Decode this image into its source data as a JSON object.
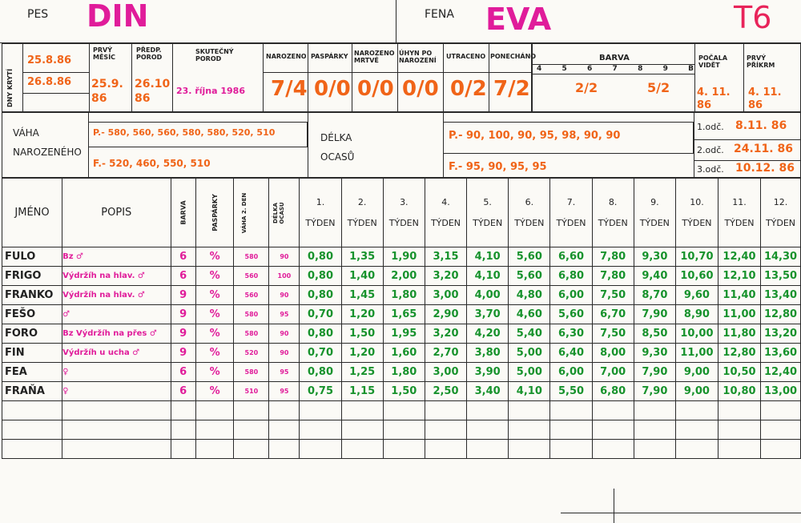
{
  "header": {
    "pes_label": "PES",
    "pes_name": "DIN",
    "fena_label": "FENA",
    "fena_name": "EVA",
    "code": "T6"
  },
  "top": {
    "dny_kryti_label": "DNY KRYTÍ",
    "kryti_1": "25.8.86",
    "kryti_2": "26.8.86",
    "prvy_mesic_label": "PRVÝ MĚSÍC",
    "prvy_mesic_value": "25.9. 86",
    "predp_porod_label": "PŘEDP. POROD",
    "predp_porod_value": "26.10 86",
    "skutecny_porod_label": "SKUTEČNÝ POROD",
    "skutecny_porod_value": "23. října 1986",
    "narozeno_label": "NAROZENO",
    "narozeno_value": "7/4",
    "pasparky_label": "PASPÁRKY",
    "pasparky_value": "0/0",
    "narozeno_mrtve_label": "NAROZENO MRTVÉ",
    "narozeno_mrtve_value": "0/0",
    "uhyn_label": "ÚHYN PO NAROZENÍ",
    "uhyn_value": "0/0",
    "utraceno_label": "UTRACENO",
    "utraceno_value": "0/2",
    "ponechano_label": "PONECHÁNO",
    "ponechano_value": "7/2",
    "barva_label": "BARVA",
    "barva_nums": [
      "4",
      "5",
      "6",
      "7",
      "8",
      "9",
      "B"
    ],
    "barva_values": [
      "2/2",
      "5/2"
    ],
    "pocala_videt_label": "POČALA VIDĚT",
    "pocala_videt_value": "4. 11. 86",
    "prvy_prikrm_label": "PRVÝ PŘÍKRM",
    "prvy_prikrm_value": "4. 11. 86"
  },
  "weight": {
    "label": "VÁHA NAROZENÉHO",
    "p": "P.- 580, 560, 560, 580, 580, 520, 510",
    "f": "F.- 520, 460, 550, 510",
    "delka_label": "DÉLKA OCASŮ",
    "delka_p": "P.- 90, 100, 90, 95, 98, 90, 90",
    "delka_f": "F.- 95, 90, 95, 95",
    "odc": [
      {
        "label": "1.odč.",
        "value": "8.11. 86"
      },
      {
        "label": "2.odč.",
        "value": "24.11. 86"
      },
      {
        "label": "3.odč.",
        "value": "10.12. 86"
      }
    ]
  },
  "table": {
    "col_jmeno": "JMÉNO",
    "col_popis": "POPIS",
    "col_barva": "BARVA",
    "col_pasparky": "PASPÁRKY",
    "col_vaha": "VÁHA 2. DEN",
    "col_delka": "DÉLKA OCASU",
    "weeks": [
      "1.",
      "2.",
      "3.",
      "4.",
      "5.",
      "6.",
      "7.",
      "8.",
      "9.",
      "10.",
      "11.",
      "12."
    ],
    "tyden": "TÝDEN",
    "rows": [
      {
        "name": "FULO",
        "popis": "Bz ♂",
        "barva": "6",
        "pasp": "%",
        "vaha": "580",
        "delka": "90",
        "w": [
          "0,80",
          "1,35",
          "1,90",
          "3,15",
          "4,10",
          "5,60",
          "6,60",
          "7,80",
          "9,30",
          "10,70",
          "12,40",
          "14,30"
        ]
      },
      {
        "name": "FRIGO",
        "popis": "Výdržíh na hlav. ♂",
        "barva": "6",
        "pasp": "%",
        "vaha": "560",
        "delka": "100",
        "w": [
          "0,80",
          "1,40",
          "2,00",
          "3,20",
          "4,10",
          "5,60",
          "6,80",
          "7,80",
          "9,40",
          "10,60",
          "12,10",
          "13,50"
        ]
      },
      {
        "name": "FRANKO",
        "popis": "Výdržíh na hlav. ♂",
        "barva": "9",
        "pasp": "%",
        "vaha": "560",
        "delka": "90",
        "w": [
          "0,80",
          "1,45",
          "1,80",
          "3,00",
          "4,00",
          "4,80",
          "6,00",
          "7,50",
          "8,70",
          "9,60",
          "11,40",
          "13,40"
        ]
      },
      {
        "name": "FEŠO",
        "popis": "♂",
        "barva": "9",
        "pasp": "%",
        "vaha": "580",
        "delka": "95",
        "w": [
          "0,70",
          "1,20",
          "1,65",
          "2,90",
          "3,70",
          "4,60",
          "5,60",
          "6,70",
          "7,90",
          "8,90",
          "11,00",
          "12,80"
        ]
      },
      {
        "name": "FORO",
        "popis": "Bz Výdržíh na přes ♂",
        "barva": "9",
        "pasp": "%",
        "vaha": "580",
        "delka": "90",
        "w": [
          "0,80",
          "1,50",
          "1,95",
          "3,20",
          "4,20",
          "5,40",
          "6,30",
          "7,50",
          "8,50",
          "10,00",
          "11,80",
          "13,20"
        ]
      },
      {
        "name": "FIN",
        "popis": "Výdržíh u ucha ♂",
        "barva": "9",
        "pasp": "%",
        "vaha": "520",
        "delka": "90",
        "w": [
          "0,70",
          "1,20",
          "1,60",
          "2,70",
          "3,80",
          "5,00",
          "6,40",
          "8,00",
          "9,30",
          "11,00",
          "12,80",
          "13,60"
        ]
      },
      {
        "name": "FEA",
        "popis": "♀",
        "barva": "6",
        "pasp": "%",
        "vaha": "580",
        "delka": "95",
        "w": [
          "0,80",
          "1,25",
          "1,80",
          "3,00",
          "3,90",
          "5,00",
          "6,00",
          "7,00",
          "7,90",
          "9,00",
          "10,50",
          "12,40"
        ]
      },
      {
        "name": "FRAŇA",
        "popis": "♀",
        "barva": "6",
        "pasp": "%",
        "vaha": "510",
        "delka": "95",
        "w": [
          "0,75",
          "1,15",
          "1,50",
          "2,50",
          "3,40",
          "4,10",
          "5,50",
          "6,80",
          "7,90",
          "9,00",
          "10,80",
          "13,00"
        ]
      }
    ]
  },
  "colors": {
    "orange": "#f06418",
    "magenta": "#e01c9a",
    "green": "#17922c",
    "ink": "#2a2a2a"
  }
}
